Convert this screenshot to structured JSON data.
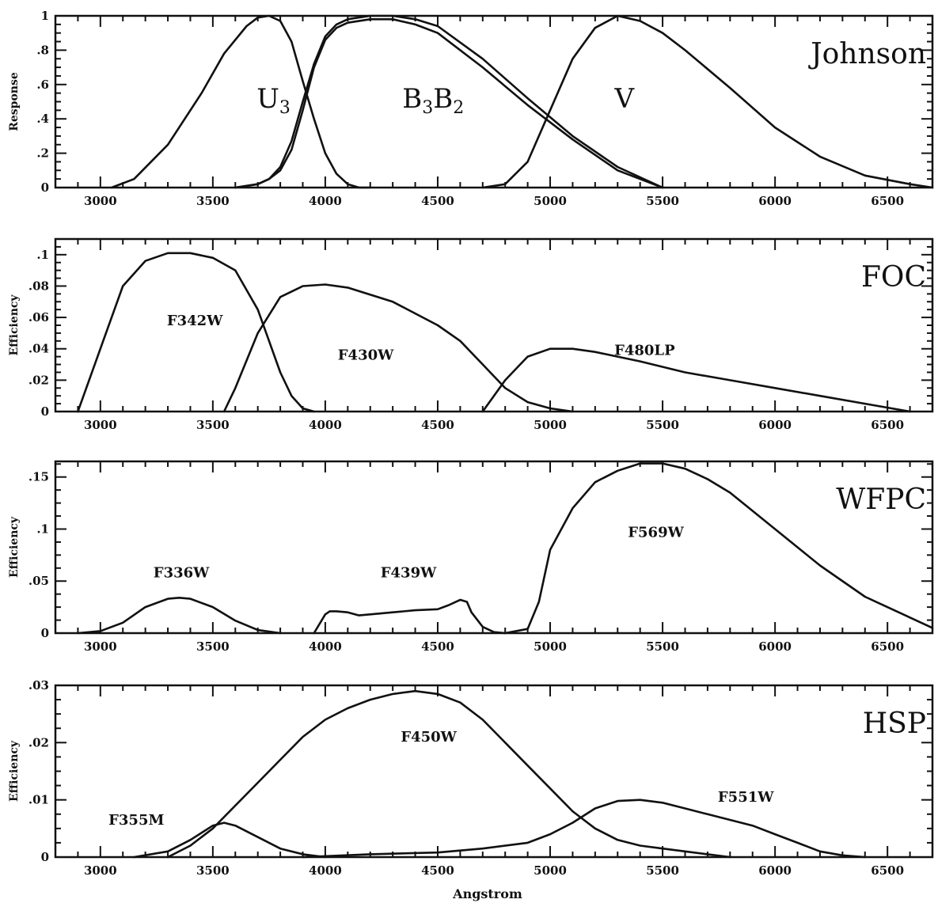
{
  "chart_data": [
    {
      "type": "line",
      "title": "Johnson",
      "ylabel": "Response",
      "xlabel": "",
      "xlim": [
        2800,
        6700
      ],
      "ylim": [
        0,
        1
      ],
      "xticks": [
        3000,
        3500,
        4000,
        4500,
        5000,
        5500,
        6000,
        6500
      ],
      "yticks": [
        0,
        0.2,
        0.4,
        0.6,
        0.8,
        1
      ],
      "ytick_labels": [
        "0",
        ".2",
        ".4",
        ".6",
        ".8",
        "1"
      ],
      "labels": [
        {
          "main": "U",
          "sub": "3",
          "x": 3770,
          "y": 0.52
        },
        {
          "main": "B",
          "sub": "3",
          "main2": "B",
          "sub2": "2",
          "x": 4480,
          "y": 0.52
        },
        {
          "main": "V",
          "x": 5330,
          "y": 0.52
        }
      ],
      "series": [
        {
          "x": [
            3050,
            3150,
            3300,
            3450,
            3550,
            3650,
            3700,
            3750,
            3800,
            3850,
            3900,
            3950,
            4000,
            4050,
            4100,
            4150,
            4200
          ],
          "values": [
            0,
            0.05,
            0.25,
            0.55,
            0.78,
            0.94,
            0.99,
            1,
            0.97,
            0.85,
            0.62,
            0.4,
            0.2,
            0.08,
            0.02,
            0,
            0
          ]
        },
        {
          "x": [
            3600,
            3700,
            3750,
            3800,
            3850,
            3900,
            3950,
            4000,
            4050,
            4100,
            4200,
            4300,
            4400,
            4500,
            4700,
            4900,
            5100,
            5300,
            5500
          ],
          "values": [
            0,
            0.02,
            0.05,
            0.12,
            0.27,
            0.5,
            0.72,
            0.88,
            0.95,
            0.98,
            1,
            1,
            0.98,
            0.94,
            0.75,
            0.52,
            0.3,
            0.12,
            0
          ]
        },
        {
          "x": [
            3600,
            3700,
            3750,
            3800,
            3850,
            3900,
            3950,
            4000,
            4050,
            4100,
            4200,
            4300,
            4400,
            4500,
            4700,
            4900,
            5100,
            5300,
            5500
          ],
          "values": [
            0,
            0.02,
            0.05,
            0.1,
            0.22,
            0.45,
            0.7,
            0.86,
            0.93,
            0.96,
            0.98,
            0.98,
            0.95,
            0.9,
            0.7,
            0.48,
            0.28,
            0.1,
            0
          ]
        },
        {
          "x": [
            4700,
            4800,
            4900,
            5000,
            5100,
            5200,
            5300,
            5400,
            5500,
            5600,
            5800,
            6000,
            6200,
            6400,
            6600,
            6700
          ],
          "values": [
            0,
            0.02,
            0.15,
            0.45,
            0.75,
            0.93,
            1,
            0.97,
            0.9,
            0.8,
            0.58,
            0.35,
            0.18,
            0.07,
            0.02,
            0
          ]
        }
      ]
    },
    {
      "type": "line",
      "title": "FOC",
      "ylabel": "Efficiency",
      "xlabel": "",
      "xlim": [
        2800,
        6700
      ],
      "ylim": [
        0,
        0.11
      ],
      "xticks": [
        3000,
        3500,
        4000,
        4500,
        5000,
        5500,
        6000,
        6500
      ],
      "yticks": [
        0,
        0.02,
        0.04,
        0.06,
        0.08,
        0.1
      ],
      "ytick_labels": [
        "0",
        ".02",
        ".04",
        ".06",
        ".08",
        ".1"
      ],
      "labels": [
        {
          "main": "F342W",
          "x": 3420,
          "y": 0.058
        },
        {
          "main": "F430W",
          "x": 4180,
          "y": 0.036
        },
        {
          "main": "F480LP",
          "x": 5420,
          "y": 0.039
        }
      ],
      "series": [
        {
          "x": [
            2900,
            3000,
            3100,
            3200,
            3300,
            3400,
            3500,
            3600,
            3700,
            3750,
            3800,
            3850,
            3900,
            3950
          ],
          "values": [
            0,
            0.04,
            0.08,
            0.096,
            0.101,
            0.101,
            0.098,
            0.09,
            0.065,
            0.045,
            0.025,
            0.01,
            0.002,
            0
          ]
        },
        {
          "x": [
            3550,
            3600,
            3700,
            3800,
            3900,
            4000,
            4100,
            4300,
            4500,
            4600,
            4700,
            4800,
            4900,
            5000,
            5100
          ],
          "values": [
            0,
            0.015,
            0.05,
            0.073,
            0.08,
            0.081,
            0.079,
            0.07,
            0.055,
            0.045,
            0.03,
            0.015,
            0.006,
            0.002,
            0
          ]
        },
        {
          "x": [
            4700,
            4800,
            4900,
            5000,
            5100,
            5200,
            5400,
            5600,
            5800,
            6000,
            6200,
            6400,
            6600
          ],
          "values": [
            0,
            0.02,
            0.035,
            0.04,
            0.04,
            0.038,
            0.032,
            0.025,
            0.02,
            0.015,
            0.01,
            0.005,
            0
          ]
        }
      ]
    },
    {
      "type": "line",
      "title": "WFPC",
      "ylabel": "Efficiency",
      "xlabel": "",
      "xlim": [
        2800,
        6700
      ],
      "ylim": [
        0,
        0.165
      ],
      "xticks": [
        3000,
        3500,
        4000,
        4500,
        5000,
        5500,
        6000,
        6500
      ],
      "yticks": [
        0,
        0.05,
        0.1,
        0.15
      ],
      "ytick_labels": [
        "0",
        ".05",
        ".1",
        ".15"
      ],
      "labels": [
        {
          "main": "F336W",
          "x": 3360,
          "y": 0.058
        },
        {
          "main": "F439W",
          "x": 4370,
          "y": 0.058
        },
        {
          "main": "F569W",
          "x": 5470,
          "y": 0.097
        }
      ],
      "series": [
        {
          "x": [
            2900,
            3000,
            3100,
            3200,
            3300,
            3350,
            3400,
            3500,
            3600,
            3700,
            3800
          ],
          "values": [
            0,
            0.002,
            0.01,
            0.025,
            0.033,
            0.034,
            0.033,
            0.025,
            0.012,
            0.003,
            0
          ]
        },
        {
          "x": [
            3950,
            4000,
            4020,
            4050,
            4100,
            4150,
            4200,
            4300,
            4400,
            4500,
            4550,
            4600,
            4630,
            4650,
            4700,
            4750,
            4800
          ],
          "values": [
            0,
            0.018,
            0.021,
            0.021,
            0.02,
            0.017,
            0.018,
            0.02,
            0.022,
            0.023,
            0.027,
            0.032,
            0.03,
            0.02,
            0.006,
            0.001,
            0
          ]
        },
        {
          "x": [
            4800,
            4900,
            4950,
            5000,
            5100,
            5200,
            5300,
            5400,
            5500,
            5600,
            5700,
            5800,
            6000,
            6200,
            6400,
            6600,
            6700
          ],
          "values": [
            0,
            0.004,
            0.03,
            0.08,
            0.12,
            0.145,
            0.156,
            0.163,
            0.163,
            0.158,
            0.148,
            0.135,
            0.1,
            0.065,
            0.035,
            0.015,
            0.005
          ]
        }
      ]
    },
    {
      "type": "line",
      "title": "HSP",
      "ylabel": "Efficiency",
      "xlabel": "Angstrom",
      "xlim": [
        2800,
        6700
      ],
      "ylim": [
        0,
        0.03
      ],
      "xticks": [
        3000,
        3500,
        4000,
        4500,
        5000,
        5500,
        6000,
        6500
      ],
      "yticks": [
        0,
        0.01,
        0.02,
        0.03
      ],
      "ytick_labels": [
        "0",
        ".01",
        ".02",
        ".03"
      ],
      "labels": [
        {
          "main": "F355M",
          "x": 3160,
          "y": 0.0065
        },
        {
          "main": "F450W",
          "x": 4460,
          "y": 0.021
        },
        {
          "main": "F551W",
          "x": 5870,
          "y": 0.0105
        }
      ],
      "series": [
        {
          "x": [
            3150,
            3300,
            3400,
            3500,
            3550,
            3600,
            3700,
            3800,
            3900,
            4000
          ],
          "values": [
            0,
            0.001,
            0.003,
            0.0055,
            0.006,
            0.0055,
            0.0035,
            0.0015,
            0.0005,
            0
          ]
        },
        {
          "x": [
            3300,
            3400,
            3500,
            3600,
            3700,
            3800,
            3900,
            4000,
            4100,
            4200,
            4300,
            4400,
            4500,
            4600,
            4700,
            4800,
            4900,
            5000,
            5100,
            5200,
            5300,
            5400,
            5500,
            5600,
            5700,
            5800
          ],
          "values": [
            0,
            0.002,
            0.005,
            0.009,
            0.013,
            0.017,
            0.021,
            0.024,
            0.026,
            0.0275,
            0.0285,
            0.029,
            0.0285,
            0.027,
            0.024,
            0.02,
            0.016,
            0.012,
            0.008,
            0.005,
            0.003,
            0.002,
            0.0015,
            0.001,
            0.0005,
            0
          ]
        },
        {
          "x": [
            3900,
            4200,
            4500,
            4700,
            4900,
            5000,
            5100,
            5200,
            5300,
            5400,
            5500,
            5600,
            5700,
            5800,
            5900,
            6000,
            6100,
            6200,
            6300,
            6400
          ],
          "values": [
            0,
            0.0005,
            0.0008,
            0.0015,
            0.0025,
            0.004,
            0.006,
            0.0085,
            0.0098,
            0.01,
            0.0095,
            0.0085,
            0.0075,
            0.0065,
            0.0055,
            0.004,
            0.0025,
            0.001,
            0.0003,
            0
          ]
        }
      ]
    }
  ]
}
